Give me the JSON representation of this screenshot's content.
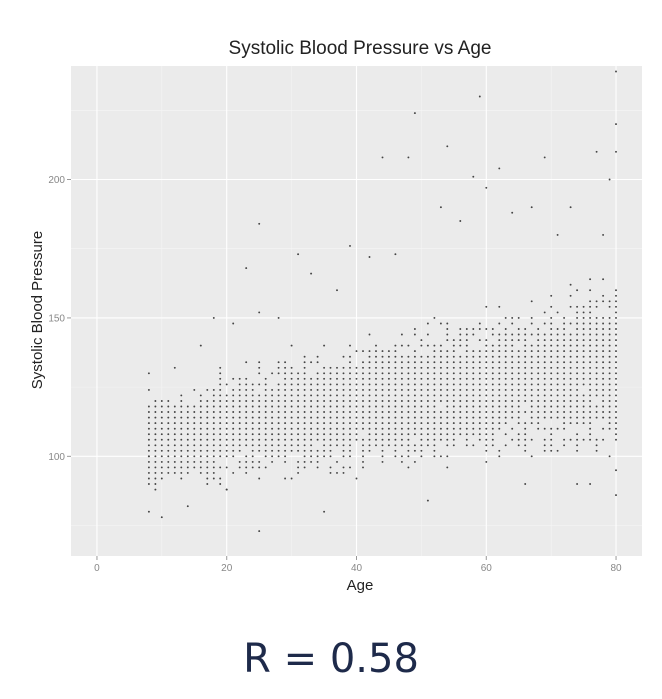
{
  "caption": {
    "text": "R = 0.58"
  },
  "chart_data": {
    "type": "scatter",
    "title": "Systolic Blood Pressure vs Age",
    "xlabel": "Age",
    "ylabel": "Systolic Blood Pressure",
    "xlim": [
      -4,
      84
    ],
    "ylim": [
      64,
      241
    ],
    "x_ticks": [
      0,
      20,
      40,
      60,
      80
    ],
    "y_ticks": [
      100,
      150,
      200
    ],
    "grid": true,
    "legend": "none",
    "point_color": "#444444",
    "panel_color": "#ebebeb",
    "sampled_points": [
      [
        8,
        80
      ],
      [
        8,
        100
      ],
      [
        8,
        124
      ],
      [
        8,
        130
      ],
      [
        10,
        78
      ],
      [
        12,
        132
      ],
      [
        14,
        82
      ],
      [
        16,
        140
      ],
      [
        18,
        150
      ],
      [
        20,
        88
      ],
      [
        21,
        148
      ],
      [
        23,
        168
      ],
      [
        25,
        73
      ],
      [
        25,
        184
      ],
      [
        25,
        152
      ],
      [
        28,
        150
      ],
      [
        31,
        173
      ],
      [
        33,
        166
      ],
      [
        35,
        80
      ],
      [
        37,
        160
      ],
      [
        39,
        176
      ],
      [
        42,
        172
      ],
      [
        44,
        208
      ],
      [
        46,
        173
      ],
      [
        48,
        208
      ],
      [
        49,
        224
      ],
      [
        51,
        84
      ],
      [
        53,
        190
      ],
      [
        54,
        212
      ],
      [
        56,
        185
      ],
      [
        58,
        201
      ],
      [
        59,
        230
      ],
      [
        60,
        197
      ],
      [
        62,
        204
      ],
      [
        64,
        188
      ],
      [
        66,
        90
      ],
      [
        67,
        190
      ],
      [
        69,
        208
      ],
      [
        71,
        180
      ],
      [
        73,
        190
      ],
      [
        74,
        90
      ],
      [
        76,
        90
      ],
      [
        77,
        210
      ],
      [
        78,
        180
      ],
      [
        79,
        200
      ],
      [
        80,
        86
      ],
      [
        80,
        95
      ],
      [
        80,
        210
      ],
      [
        80,
        220
      ],
      [
        80,
        239
      ]
    ]
  }
}
